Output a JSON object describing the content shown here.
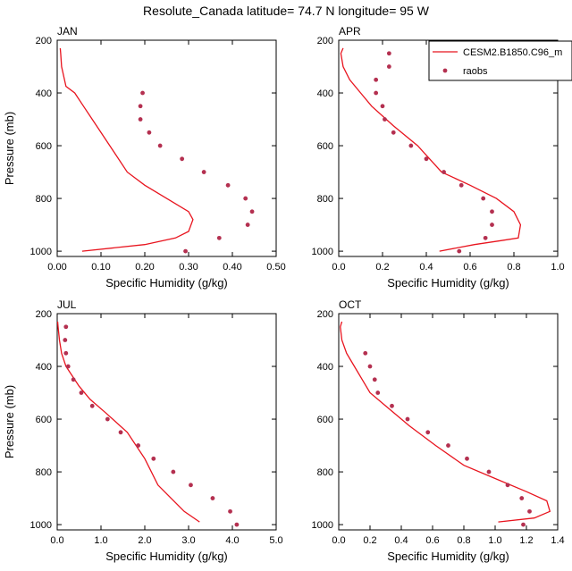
{
  "figure": {
    "title": "Resolute_Canada  latitude= 74.7 N longitude= 95 W"
  },
  "legend": {
    "model_label": "CESM2.B1850.C96_m",
    "obs_label": "raobs",
    "model_color": "#e8141e",
    "obs_color": "#b43050"
  },
  "chart_data": [
    {
      "type": "line",
      "panel": "JAN",
      "title": "JAN",
      "xlabel": "Specific Humidity (g/kg)",
      "ylabel": "Pressure (mb)",
      "xlim": [
        0,
        0.5
      ],
      "ylim": [
        1020,
        200
      ],
      "xticks": [
        "0.00",
        "0.10",
        "0.20",
        "0.30",
        "0.40",
        "0.50"
      ],
      "yticks": [
        "200",
        "400",
        "600",
        "800",
        "1000"
      ],
      "series": [
        {
          "name": "CESM2.B1850.C96_m",
          "style": "line",
          "points": [
            [
              0.057,
              1000
            ],
            [
              0.2,
              975
            ],
            [
              0.27,
              950
            ],
            [
              0.3,
              925
            ],
            [
              0.31,
              880
            ],
            [
              0.3,
              850
            ],
            [
              0.25,
              800
            ],
            [
              0.2,
              750
            ],
            [
              0.16,
              700
            ],
            [
              0.12,
              600
            ],
            [
              0.09,
              525
            ],
            [
              0.06,
              450
            ],
            [
              0.04,
              400
            ],
            [
              0.02,
              375
            ],
            [
              0.01,
              300
            ],
            [
              0.008,
              250
            ],
            [
              0.007,
              230
            ]
          ]
        },
        {
          "name": "raobs",
          "style": "points",
          "points": [
            [
              0.293,
              1000
            ],
            [
              0.37,
              950
            ],
            [
              0.435,
              900
            ],
            [
              0.445,
              850
            ],
            [
              0.43,
              800
            ],
            [
              0.39,
              750
            ],
            [
              0.335,
              700
            ],
            [
              0.285,
              650
            ],
            [
              0.235,
              600
            ],
            [
              0.21,
              550
            ],
            [
              0.19,
              500
            ],
            [
              0.19,
              450
            ],
            [
              0.195,
              400
            ]
          ]
        }
      ]
    },
    {
      "type": "line",
      "panel": "APR",
      "title": "APR",
      "xlabel": "Specific Humidity (g/kg)",
      "ylabel": "",
      "xlim": [
        0,
        1.0
      ],
      "ylim": [
        1020,
        200
      ],
      "xticks": [
        "0.0",
        "0.2",
        "0.4",
        "0.6",
        "0.8",
        "1.0"
      ],
      "yticks": [
        "200",
        "400",
        "600",
        "800",
        "1000"
      ],
      "series": [
        {
          "name": "CESM2.B1850.C96_m",
          "style": "line",
          "points": [
            [
              0.46,
              1000
            ],
            [
              0.62,
              975
            ],
            [
              0.74,
              960
            ],
            [
              0.82,
              950
            ],
            [
              0.83,
              900
            ],
            [
              0.8,
              850
            ],
            [
              0.72,
              800
            ],
            [
              0.6,
              750
            ],
            [
              0.47,
              700
            ],
            [
              0.36,
              600
            ],
            [
              0.25,
              525
            ],
            [
              0.15,
              450
            ],
            [
              0.1,
              400
            ],
            [
              0.05,
              350
            ],
            [
              0.02,
              300
            ],
            [
              0.01,
              250
            ],
            [
              0.02,
              230
            ]
          ]
        },
        {
          "name": "raobs",
          "style": "points",
          "points": [
            [
              0.55,
              1000
            ],
            [
              0.67,
              950
            ],
            [
              0.7,
              900
            ],
            [
              0.7,
              850
            ],
            [
              0.66,
              800
            ],
            [
              0.56,
              750
            ],
            [
              0.48,
              700
            ],
            [
              0.4,
              650
            ],
            [
              0.33,
              600
            ],
            [
              0.25,
              550
            ],
            [
              0.21,
              500
            ],
            [
              0.2,
              450
            ],
            [
              0.17,
              400
            ],
            [
              0.17,
              350
            ],
            [
              0.23,
              300
            ],
            [
              0.23,
              250
            ]
          ]
        }
      ]
    },
    {
      "type": "line",
      "panel": "JUL",
      "title": "JUL",
      "xlabel": "Specific Humidity (g/kg)",
      "ylabel": "Pressure (mb)",
      "xlim": [
        0,
        5.0
      ],
      "ylim": [
        1020,
        200
      ],
      "xticks": [
        "0.0",
        "1.0",
        "2.0",
        "3.0",
        "4.0",
        "5.0"
      ],
      "yticks": [
        "200",
        "400",
        "600",
        "800",
        "1000"
      ],
      "series": [
        {
          "name": "CESM2.B1850.C96_m",
          "style": "line",
          "points": [
            [
              3.25,
              990
            ],
            [
              2.9,
              950
            ],
            [
              2.6,
              900
            ],
            [
              2.3,
              850
            ],
            [
              2.0,
              750
            ],
            [
              1.6,
              650
            ],
            [
              1.1,
              575
            ],
            [
              0.75,
              525
            ],
            [
              0.5,
              475
            ],
            [
              0.3,
              425
            ],
            [
              0.2,
              400
            ],
            [
              0.1,
              350
            ],
            [
              0.05,
              300
            ],
            [
              0.02,
              250
            ],
            [
              0.01,
              230
            ]
          ]
        },
        {
          "name": "raobs",
          "style": "points",
          "points": [
            [
              4.1,
              1000
            ],
            [
              3.95,
              950
            ],
            [
              3.55,
              900
            ],
            [
              3.05,
              850
            ],
            [
              2.65,
              800
            ],
            [
              2.2,
              750
            ],
            [
              1.85,
              700
            ],
            [
              1.45,
              650
            ],
            [
              1.15,
              600
            ],
            [
              0.8,
              550
            ],
            [
              0.55,
              500
            ],
            [
              0.37,
              450
            ],
            [
              0.25,
              400
            ],
            [
              0.2,
              350
            ],
            [
              0.18,
              300
            ],
            [
              0.2,
              250
            ]
          ]
        }
      ]
    },
    {
      "type": "line",
      "panel": "OCT",
      "title": "OCT",
      "xlabel": "Specific Humidity (g/kg)",
      "ylabel": "",
      "xlim": [
        0,
        1.4
      ],
      "ylim": [
        1020,
        200
      ],
      "xticks": [
        "0.0",
        "0.2",
        "0.4",
        "0.6",
        "0.8",
        "1.0",
        "1.2",
        "1.4"
      ],
      "yticks": [
        "200",
        "400",
        "600",
        "800",
        "1000"
      ],
      "series": [
        {
          "name": "CESM2.B1850.C96_m",
          "style": "line",
          "points": [
            [
              1.02,
              990
            ],
            [
              1.25,
              975
            ],
            [
              1.35,
              950
            ],
            [
              1.33,
              910
            ],
            [
              1.2,
              875
            ],
            [
              1.0,
              825
            ],
            [
              0.8,
              775
            ],
            [
              0.62,
              700
            ],
            [
              0.45,
              625
            ],
            [
              0.3,
              550
            ],
            [
              0.2,
              500
            ],
            [
              0.15,
              450
            ],
            [
              0.1,
              400
            ],
            [
              0.05,
              350
            ],
            [
              0.02,
              300
            ],
            [
              0.01,
              250
            ],
            [
              0.02,
              230
            ]
          ]
        },
        {
          "name": "raobs",
          "style": "points",
          "points": [
            [
              1.18,
              1000
            ],
            [
              1.22,
              950
            ],
            [
              1.17,
              900
            ],
            [
              1.08,
              850
            ],
            [
              0.96,
              800
            ],
            [
              0.82,
              750
            ],
            [
              0.7,
              700
            ],
            [
              0.57,
              650
            ],
            [
              0.44,
              600
            ],
            [
              0.34,
              550
            ],
            [
              0.25,
              500
            ],
            [
              0.23,
              450
            ],
            [
              0.2,
              400
            ],
            [
              0.17,
              350
            ]
          ]
        }
      ]
    }
  ]
}
